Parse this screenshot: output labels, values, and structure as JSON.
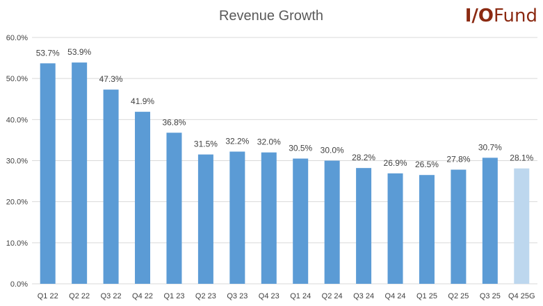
{
  "logo": {
    "part1": "I/O",
    "part2": "Fund"
  },
  "colors": {
    "bar": "#5b9bd5",
    "guidance_bar": "#bdd7ee",
    "grid": "#d9d9d9",
    "text": "#404040",
    "title": "#595959",
    "logo": "#8b2a12"
  },
  "chart_data": {
    "type": "bar",
    "title": "Revenue Growth",
    "xlabel": "",
    "ylabel": "",
    "ylim": [
      0,
      60
    ],
    "yticks": [
      0,
      10,
      20,
      30,
      40,
      50,
      60
    ],
    "ytick_labels": [
      "0.0%",
      "10.0%",
      "20.0%",
      "30.0%",
      "40.0%",
      "50.0%",
      "60.0%"
    ],
    "grid": true,
    "categories": [
      "Q1 22",
      "Q2 22",
      "Q3 22",
      "Q4 22",
      "Q1 23",
      "Q2 23",
      "Q3 23",
      "Q4 23",
      "Q1 24",
      "Q2 24",
      "Q3 24",
      "Q4 24",
      "Q1 25",
      "Q2 25",
      "Q3 25",
      "Q4 25G"
    ],
    "values": [
      53.7,
      53.9,
      47.3,
      41.9,
      36.8,
      31.5,
      32.2,
      32.0,
      30.5,
      30.0,
      28.2,
      26.9,
      26.5,
      27.8,
      30.7,
      28.1
    ],
    "data_labels": [
      "53.7%",
      "53.9%",
      "47.3%",
      "41.9%",
      "36.8%",
      "31.5%",
      "32.2%",
      "32.0%",
      "30.5%",
      "30.0%",
      "28.2%",
      "26.9%",
      "26.5%",
      "27.8%",
      "30.7%",
      "28.1%"
    ],
    "guidance_index": 15
  }
}
